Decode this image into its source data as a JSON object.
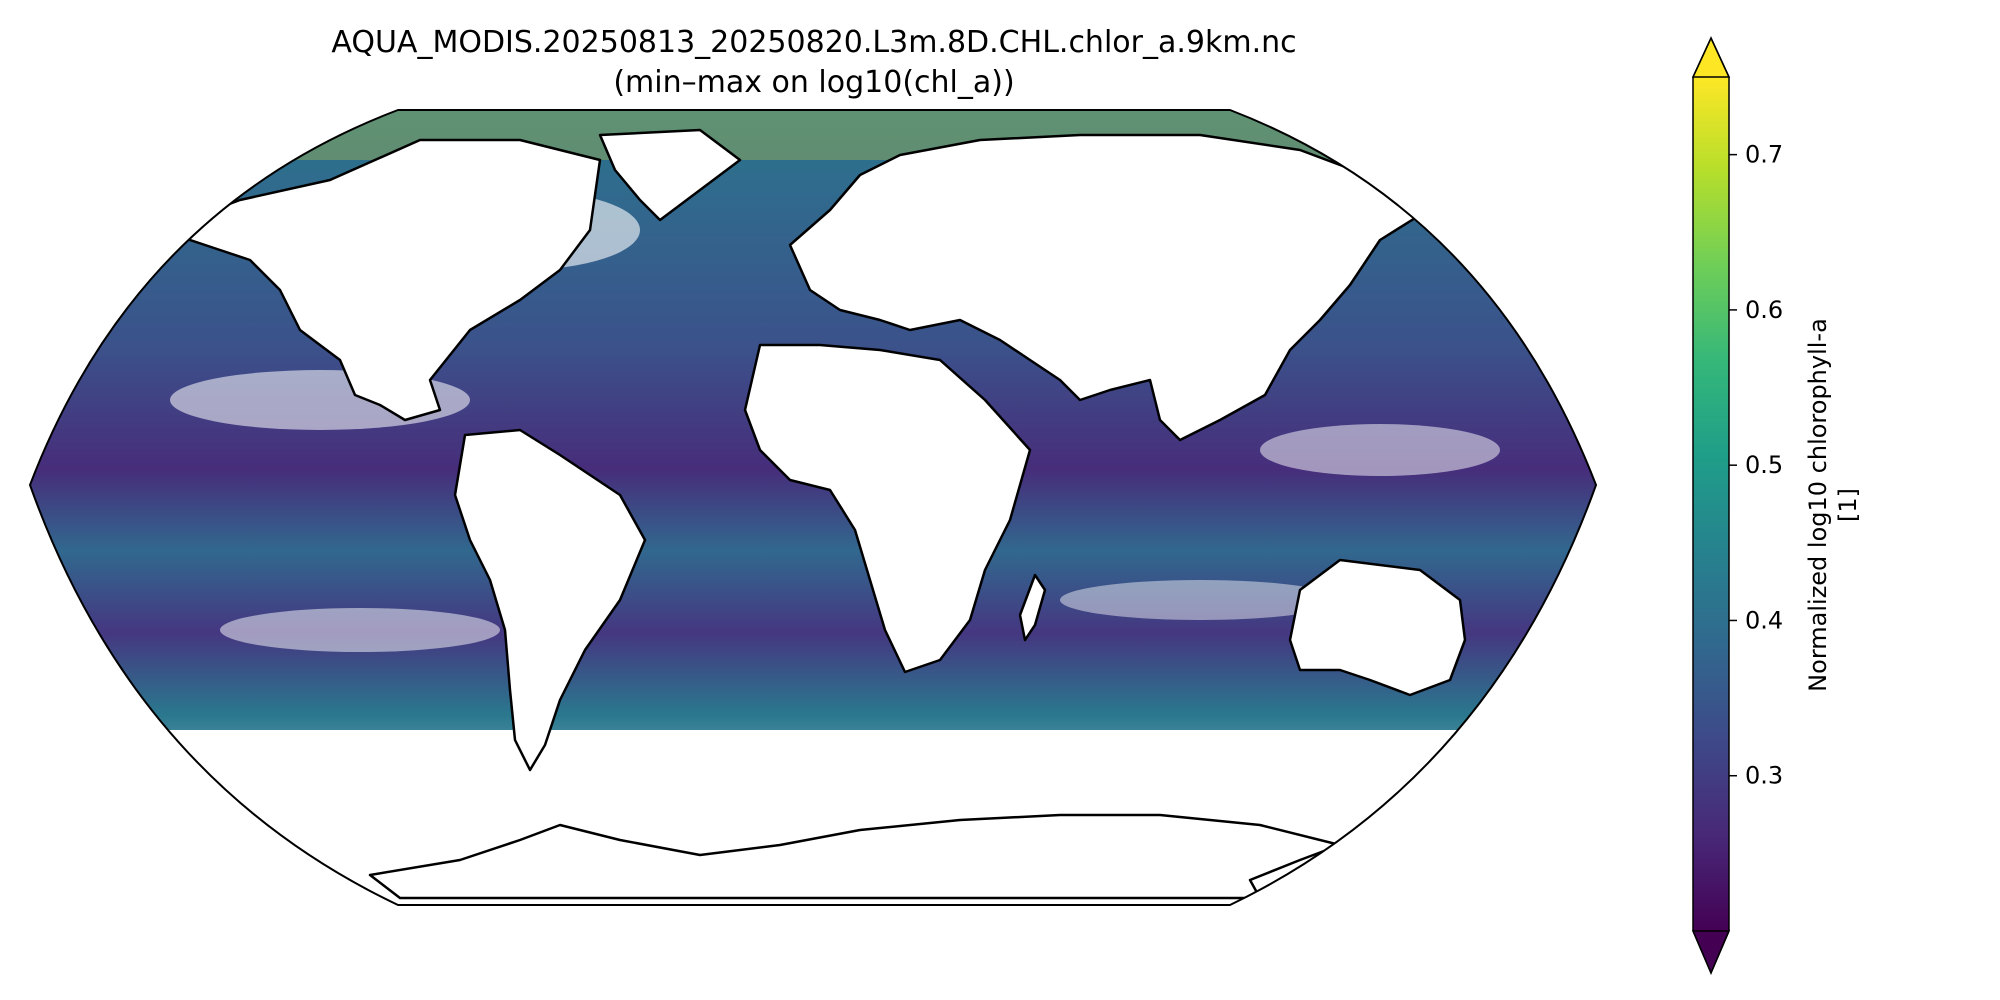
{
  "figure": {
    "title": "AQUA_MODIS.20250813_20250820.L3m.8D.CHL.chlor_a.9km.nc",
    "subtitle": "(min–max on log10(chl_a))"
  },
  "map": {
    "projection": "Robinson",
    "coastlines": true,
    "background": "#ffffff",
    "coastline_color": "#000000"
  },
  "colorbar": {
    "colormap": "viridis",
    "orientation": "vertical",
    "extend": "both",
    "label_line1": "Normalized log10 chlorophyll-a",
    "label_line2": "[1]",
    "range": [
      0.2,
      0.75
    ],
    "ticks": [
      {
        "value": 0.3,
        "label": "0.3"
      },
      {
        "value": 0.4,
        "label": "0.4"
      },
      {
        "value": 0.5,
        "label": "0.5"
      },
      {
        "value": 0.6,
        "label": "0.6"
      },
      {
        "value": 0.7,
        "label": "0.7"
      }
    ],
    "colors": [
      "#440154",
      "#482878",
      "#3e4989",
      "#31688e",
      "#26828e",
      "#1f9e89",
      "#35b779",
      "#6ece58",
      "#b5de2b",
      "#fde725"
    ]
  }
}
